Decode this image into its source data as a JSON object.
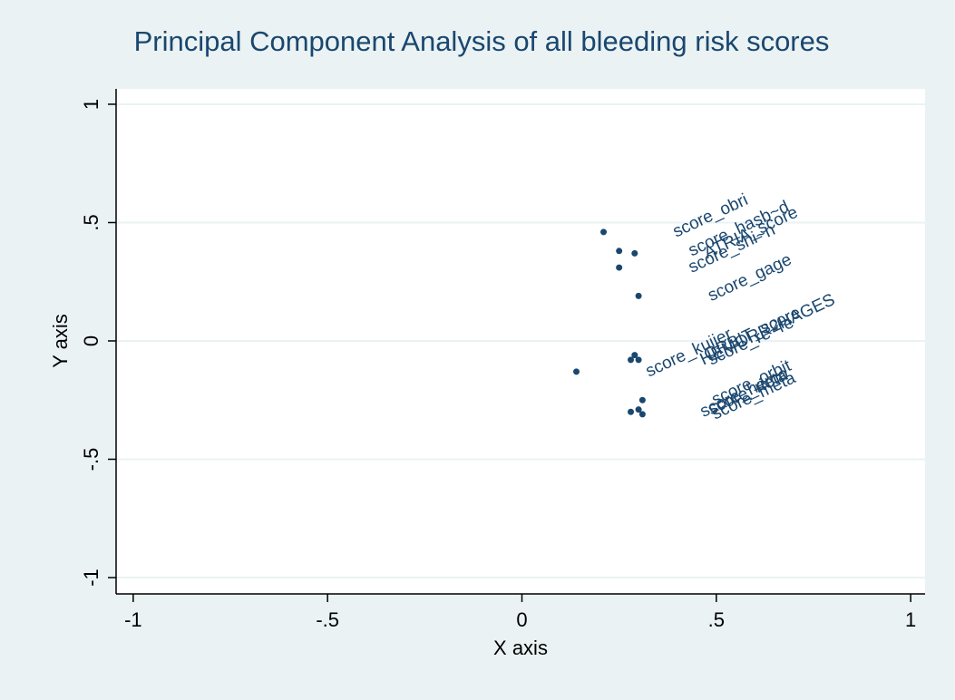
{
  "chart_data": {
    "type": "scatter",
    "title": "Principal Component Analysis of all bleeding risk scores",
    "x_label": "X axis",
    "y_label": "Y axis",
    "x": [
      0.21,
      0.25,
      0.29,
      0.25,
      0.3,
      0.29,
      0.28,
      0.3,
      0.14,
      0.31,
      0.3,
      0.28,
      0.31
    ],
    "values": [
      0.46,
      0.38,
      0.37,
      0.31,
      0.19,
      -0.06,
      -0.08,
      -0.08,
      -0.13,
      -0.25,
      -0.29,
      -0.3,
      -0.31
    ],
    "labels": [
      "score_obri",
      "score_hasb~d",
      "ATRIA_score",
      "score_shi~n",
      "score_gage",
      "ORBIT_score",
      "HEMORR2HAGES",
      "score_re~re",
      "score_kuijer",
      "score_orbit",
      "score_rieta",
      "score_hemo",
      "score_meta"
    ],
    "color": "#1a476f",
    "xlim": [
      -1.044,
      1.037
    ],
    "ylim": [
      -1.069,
      1.065
    ],
    "xticks": [
      -1,
      {
        "value": -0.5,
        "label": "-.5"
      },
      0,
      {
        "value": 0.5,
        "label": ".5"
      },
      1
    ],
    "yticks": [
      -1,
      {
        "value": -0.5,
        "label": "-.5"
      },
      0,
      {
        "value": 0.5,
        "label": ".5"
      },
      1
    ],
    "grid": true
  }
}
